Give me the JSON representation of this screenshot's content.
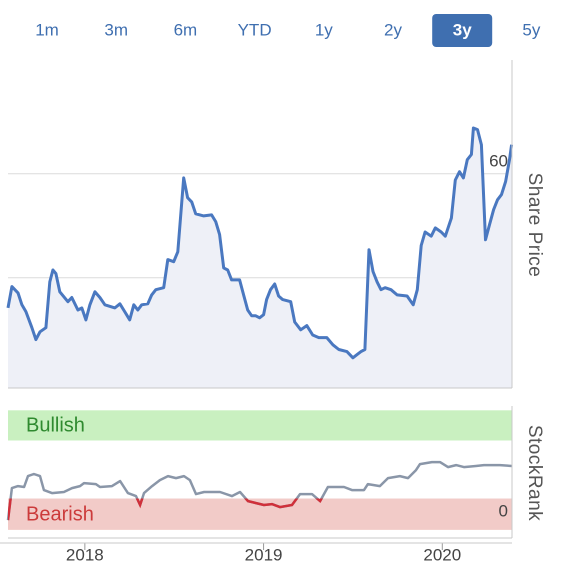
{
  "range_selector": {
    "options": [
      "1m",
      "3m",
      "6m",
      "YTD",
      "1y",
      "2y",
      "3y",
      "5y"
    ],
    "selected": 6
  },
  "chart_data": [
    {
      "type": "line",
      "y_label": "Share Price",
      "area": true,
      "x": [
        2017.57,
        2017.592,
        2017.626,
        2017.648,
        2017.67,
        2017.704,
        2017.726,
        2017.749,
        2017.782,
        2017.804,
        2017.821,
        2017.838,
        2017.86,
        2017.905,
        2017.927,
        2017.961,
        2017.983,
        2018.006,
        2018.028,
        2018.056,
        2018.084,
        2018.112,
        2018.168,
        2018.196,
        2018.223,
        2018.251,
        2018.274,
        2018.296,
        2018.318,
        2018.352,
        2018.374,
        2018.397,
        2018.441,
        2018.464,
        2018.497,
        2018.52,
        2018.553,
        2018.575,
        2018.598,
        2018.62,
        2018.665,
        2018.709,
        2018.732,
        2018.754,
        2018.777,
        2018.799,
        2018.821,
        2018.866,
        2018.888,
        2018.911,
        2018.933,
        2018.955,
        2018.978,
        2019.0,
        2019.017,
        2019.039,
        2019.062,
        2019.084,
        2019.107,
        2019.152,
        2019.174,
        2019.208,
        2019.242,
        2019.275,
        2019.309,
        2019.354,
        2019.388,
        2019.421,
        2019.466,
        2019.5,
        2019.522,
        2019.545,
        2019.567,
        2019.59,
        2019.612,
        2019.635,
        2019.657,
        2019.68,
        2019.713,
        2019.747,
        2019.803,
        2019.837,
        2019.86,
        2019.882,
        2019.904,
        2019.938,
        2019.961,
        2019.994,
        2020.017,
        2020.051,
        2020.073,
        2020.096,
        2020.118,
        2020.14,
        2020.163,
        2020.174,
        2020.197,
        2020.219,
        2020.242,
        2020.264,
        2020.287,
        2020.309,
        2020.331,
        2020.354,
        2020.376,
        2020.388
      ],
      "series": [
        {
          "name": "Share Price",
          "color": "#4a78c0",
          "values": [
            34.2,
            38.3,
            37.1,
            34.8,
            33.5,
            30.4,
            28.1,
            29.6,
            30.4,
            39.2,
            41.5,
            40.8,
            37.3,
            35.4,
            36.2,
            33.8,
            34.2,
            31.9,
            34.8,
            37.3,
            36.2,
            34.8,
            34.2,
            35.0,
            33.5,
            31.9,
            34.8,
            33.8,
            34.8,
            35.0,
            36.7,
            37.7,
            38.1,
            43.5,
            43.1,
            45.0,
            59.2,
            55.4,
            54.6,
            52.3,
            51.9,
            52.1,
            50.8,
            48.3,
            41.9,
            41.5,
            39.6,
            39.6,
            36.7,
            33.8,
            32.7,
            32.7,
            32.3,
            32.9,
            35.8,
            37.7,
            38.8,
            36.5,
            35.8,
            35.4,
            31.5,
            30.0,
            30.8,
            29.0,
            28.5,
            28.5,
            27.1,
            26.2,
            25.8,
            24.6,
            25.2,
            25.8,
            26.2,
            45.4,
            41.2,
            39.2,
            37.7,
            38.1,
            37.7,
            36.7,
            36.5,
            34.8,
            37.7,
            46.2,
            48.8,
            48.0,
            49.6,
            48.8,
            48.0,
            51.5,
            58.8,
            60.4,
            59.2,
            62.7,
            63.7,
            68.8,
            68.5,
            65.6,
            47.3,
            50.2,
            53.1,
            55.0,
            56.0,
            58.5,
            62.7,
            65.6
          ]
        }
      ],
      "xlim": [
        2017.57,
        2020.39
      ],
      "ylim": [
        18.8,
        81.5
      ],
      "yticks": [
        20,
        40,
        60
      ],
      "grid": true
    },
    {
      "type": "line",
      "y_label": "StockRank",
      "x": [
        2017.57,
        2017.592,
        2017.626,
        2017.66,
        2017.682,
        2017.715,
        2017.749,
        2017.771,
        2017.816,
        2017.883,
        2017.928,
        2017.973,
        2017.995,
        2018.062,
        2018.085,
        2018.152,
        2018.197,
        2018.241,
        2018.286,
        2018.309,
        2018.331,
        2018.376,
        2018.42,
        2018.465,
        2018.51,
        2018.555,
        2018.588,
        2018.622,
        2018.667,
        2018.756,
        2018.823,
        2018.868,
        2018.913,
        2018.958,
        2019.002,
        2019.047,
        2019.092,
        2019.159,
        2019.204,
        2019.271,
        2019.316,
        2019.36,
        2019.45,
        2019.495,
        2019.562,
        2019.584,
        2019.651,
        2019.696,
        2019.763,
        2019.808,
        2019.853,
        2019.875,
        2019.942,
        2019.987,
        2020.032,
        2020.077,
        2020.121,
        2020.188,
        2020.233,
        2020.323,
        2020.39
      ],
      "series": [
        {
          "name": "StockRank",
          "color": "#8a96a8",
          "low_color": "#d0303a",
          "values": [
            3.4,
            31.0,
            32.7,
            31.9,
            41.3,
            43.1,
            41.3,
            29.3,
            26.7,
            27.6,
            31.0,
            32.7,
            35.3,
            34.4,
            31.9,
            32.7,
            37.0,
            26.7,
            24.1,
            16.4,
            26.7,
            32.7,
            37.9,
            41.3,
            39.6,
            41.3,
            37.9,
            25.8,
            27.6,
            27.6,
            24.1,
            27.6,
            19.8,
            18.1,
            16.4,
            17.2,
            14.6,
            16.4,
            25.8,
            25.8,
            19.8,
            31.9,
            31.9,
            29.3,
            29.3,
            34.4,
            32.7,
            39.6,
            41.3,
            39.6,
            46.5,
            51.7,
            53.4,
            53.4,
            49.1,
            50.8,
            49.1,
            50.0,
            50.8,
            50.8,
            50.0
          ]
        }
      ],
      "bands": [
        {
          "label": "Bullish",
          "range": [
            72,
            98
          ],
          "color": "#c9f0c0",
          "text_color": "#2f8a2f"
        },
        {
          "label": "Bearish",
          "range": [
            -5,
            22
          ],
          "color": "#f2cbc8",
          "text_color": "#cc3b3b"
        }
      ],
      "xlim": [
        2017.57,
        2020.39
      ],
      "ylim": [
        -12,
        100
      ],
      "yticks": [
        0
      ],
      "xticks": [
        2018,
        2019,
        2020
      ]
    }
  ]
}
